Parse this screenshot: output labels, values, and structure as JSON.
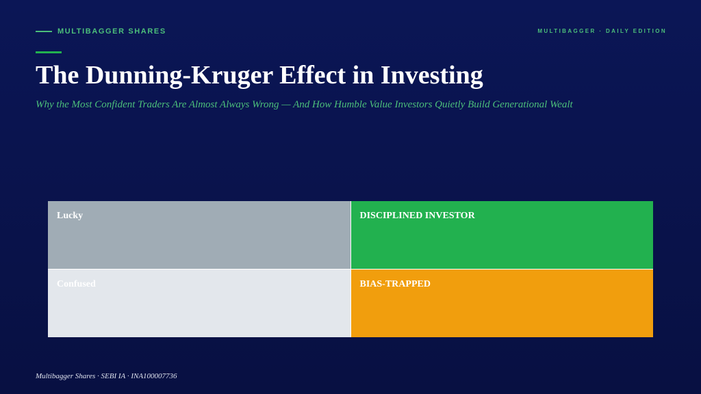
{
  "header": {
    "brand": "MULTIBAGGER SHARES",
    "edition": "MULTIBAGGER · DAILY EDITION"
  },
  "title": "The Dunning-Kruger Effect in Investing",
  "subtitle": "Why the Most Confident Traders Are Almost Always Wrong — And How Humble Value Investors Quietly Build Generational Wealt",
  "quadrants": [
    {
      "label": "Lucky",
      "color": "#a0acb5"
    },
    {
      "label": "DISCIPLINED INVESTOR",
      "color": "#22b14f"
    },
    {
      "label": "Confused",
      "color": "#e3e7ec"
    },
    {
      "label": "BIAS-TRAPPED",
      "color": "#f19e0d"
    }
  ],
  "footer": "Multibagger Shares · SEBI IA · INA100007736"
}
